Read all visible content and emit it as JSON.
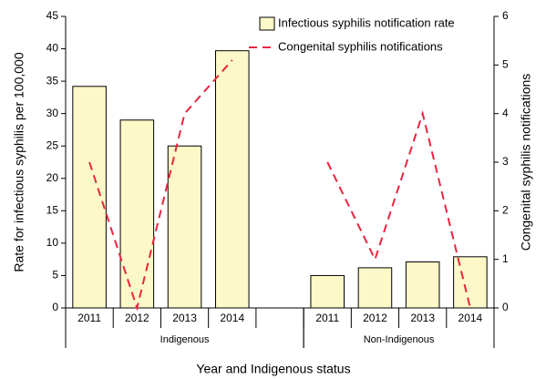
{
  "chart_data": {
    "type": "bar_line",
    "categories": [
      "2011",
      "2012",
      "2013",
      "2014",
      null,
      "2011",
      "2012",
      "2013",
      "2014"
    ],
    "groups": [
      {
        "label": "Indigenous",
        "start": 0,
        "end": 4
      },
      {
        "label": "Non-Indigenous",
        "start": 5,
        "end": 8
      }
    ],
    "series": [
      {
        "name": "Infectious syphilis notification rate",
        "type": "bar",
        "color": "#fdf8c8",
        "values": [
          34.2,
          29,
          25,
          39.7,
          null,
          5,
          6.2,
          7.1,
          7.9
        ]
      },
      {
        "name": "Congenital syphilis notifications",
        "type": "line",
        "axis": "y2",
        "color": "#e8253f",
        "values": [
          3,
          0,
          4,
          5.1,
          null,
          3,
          1,
          4,
          0
        ]
      }
    ],
    "xlabel": "Year and Indigenous status",
    "ylabel": "Rate for infectious syphilis per 100,000",
    "y2label": "Congenital syphilis notifications",
    "ylim": [
      0,
      45
    ],
    "yticks": [
      0,
      5,
      10,
      15,
      20,
      25,
      30,
      35,
      40,
      45
    ],
    "y2lim": [
      0,
      6
    ],
    "y2ticks": [
      0,
      1,
      2,
      3,
      4,
      5,
      6
    ],
    "grid": false,
    "legend": "upper right"
  }
}
